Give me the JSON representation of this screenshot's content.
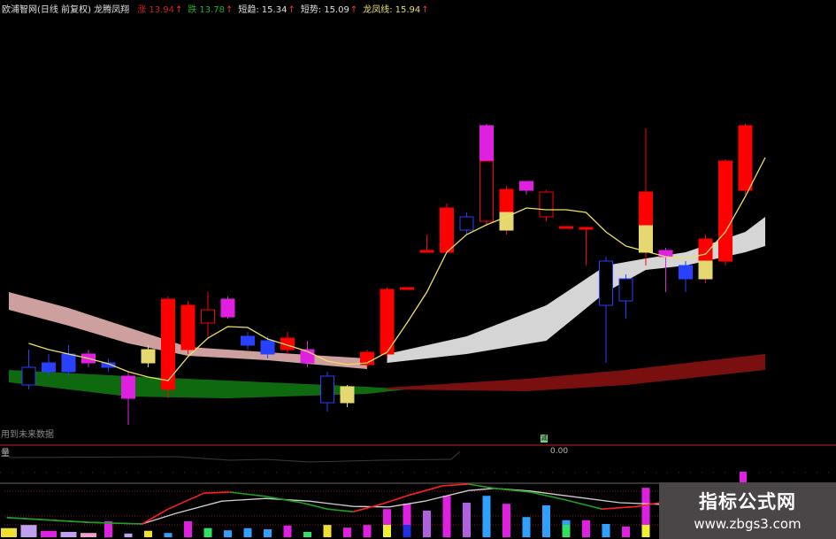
{
  "header": {
    "title": "欧浦智网(日线 前复权) 龙腾凤翔",
    "items": [
      {
        "label": "涨",
        "value": "13.94",
        "arrow": "↑",
        "color": "red"
      },
      {
        "label": "跌",
        "value": "13.78",
        "arrow": "↑",
        "color": "green"
      },
      {
        "label": "短趋:",
        "value": "15.34",
        "arrow": "↑",
        "color": "white"
      },
      {
        "label": "短势:",
        "value": "15.09",
        "arrow": "↑",
        "color": "white"
      },
      {
        "label": "龙凤线:",
        "value": "15.94",
        "arrow": "↑",
        "color": "yellow"
      }
    ]
  },
  "future_label": "用到未来数据",
  "volume": {
    "label": "量",
    "value": "0.00",
    "mark": "减"
  },
  "watermark": {
    "title": "指标公式网",
    "url": "www.zbgs3.com"
  },
  "colors": {
    "up": "#ff0000",
    "down": "#2840ff",
    "magenta": "#e020e0",
    "yellow": "#e6d870",
    "trend_line": "#f0e060",
    "pink_band": "#d8a8a8",
    "green_band": "#107010",
    "white_band": "#e0e0e0",
    "darkred_band": "#801010"
  },
  "chart_data": {
    "type": "candlestick",
    "candles": [
      {
        "o": 10.7,
        "c": 10.3,
        "h": 11.1,
        "l": 10.2,
        "t": "down",
        "hollow": true
      },
      {
        "o": 10.8,
        "c": 10.6,
        "h": 11.0,
        "l": 10.5,
        "t": "down"
      },
      {
        "o": 11.0,
        "c": 10.6,
        "h": 11.2,
        "l": 10.5,
        "t": "down"
      },
      {
        "o": 11.0,
        "c": 10.8,
        "h": 11.1,
        "l": 10.7,
        "t": "magenta"
      },
      {
        "o": 10.8,
        "c": 10.7,
        "h": 10.9,
        "l": 10.6,
        "t": "down"
      },
      {
        "o": 10.5,
        "c": 10.0,
        "h": 10.6,
        "l": 9.4,
        "t": "magenta"
      },
      {
        "o": 11.1,
        "c": 10.8,
        "h": 11.2,
        "l": 10.7,
        "t": "yellow"
      },
      {
        "o": 10.2,
        "c": 12.24,
        "h": 12.3,
        "l": 10.0,
        "t": "up"
      },
      {
        "o": 11.1,
        "c": 12.1,
        "h": 12.2,
        "l": 11.0,
        "t": "up"
      },
      {
        "o": 11.7,
        "c": 12.0,
        "h": 12.4,
        "l": 11.4,
        "t": "up",
        "hollow": true
      },
      {
        "o": 12.24,
        "c": 11.84,
        "h": 12.3,
        "l": 11.8,
        "t": "magenta"
      },
      {
        "o": 11.4,
        "c": 11.2,
        "h": 11.5,
        "l": 11.1,
        "t": "down"
      },
      {
        "o": 11.3,
        "c": 11.0,
        "h": 11.4,
        "l": 10.9,
        "t": "down"
      },
      {
        "o": 11.1,
        "c": 11.36,
        "h": 11.5,
        "l": 11.0,
        "t": "up"
      },
      {
        "o": 11.1,
        "c": 10.8,
        "h": 11.3,
        "l": 10.7,
        "t": "magenta"
      },
      {
        "o": 10.5,
        "c": 9.9,
        "h": 10.6,
        "l": 9.7,
        "t": "down",
        "hollow": true
      },
      {
        "o": 10.26,
        "c": 9.9,
        "h": 10.3,
        "l": 9.8,
        "t": "yellow"
      },
      {
        "o": 10.76,
        "c": 11.04,
        "h": 11.1,
        "l": 10.7,
        "t": "up"
      },
      {
        "o": 11.0,
        "c": 12.46,
        "h": 12.5,
        "l": 10.9,
        "t": "up"
      },
      {
        "o": 12.5,
        "c": 12.46,
        "h": 12.5,
        "l": 12.46,
        "t": "up"
      },
      {
        "o": 13.34,
        "c": 13.3,
        "h": 13.7,
        "l": 13.3,
        "t": "up"
      },
      {
        "o": 13.3,
        "c": 14.3,
        "h": 14.4,
        "l": 13.3,
        "t": "up"
      },
      {
        "o": 14.1,
        "c": 13.8,
        "h": 14.2,
        "l": 13.7,
        "t": "down",
        "hollow": true
      },
      {
        "o": 14.0,
        "c": 16.16,
        "h": 16.2,
        "l": 13.9,
        "t": "magenta",
        "split": 15.36,
        "lower_t": "up",
        "lower_hollow": true
      },
      {
        "o": 13.8,
        "c": 14.72,
        "h": 14.8,
        "l": 13.7,
        "t": "up",
        "split": 14.2,
        "lower_t": "yellow"
      },
      {
        "o": 14.7,
        "c": 14.9,
        "h": 14.9,
        "l": 14.6,
        "t": "magenta"
      },
      {
        "o": 14.1,
        "c": 14.66,
        "h": 14.7,
        "l": 14.0,
        "t": "up",
        "hollow": true
      },
      {
        "o": 13.88,
        "c": 13.84,
        "h": 13.88,
        "l": 13.84,
        "t": "up"
      },
      {
        "o": 13.86,
        "c": 13.82,
        "h": 13.86,
        "l": 13.0,
        "t": "up"
      },
      {
        "o": 13.1,
        "c": 12.1,
        "h": 13.2,
        "l": 10.8,
        "t": "down",
        "hollow": true
      },
      {
        "o": 12.7,
        "c": 12.2,
        "h": 12.8,
        "l": 11.8,
        "t": "down",
        "hollow": true
      },
      {
        "o": 13.3,
        "c": 14.66,
        "h": 16.1,
        "l": 13.0,
        "t": "up",
        "split": 13.9,
        "lower_t": "yellow"
      },
      {
        "o": 13.34,
        "c": 13.2,
        "h": 13.4,
        "l": 12.4,
        "t": "magenta"
      },
      {
        "o": 13.0,
        "c": 12.7,
        "h": 13.1,
        "l": 12.4,
        "t": "down"
      },
      {
        "o": 12.7,
        "c": 13.6,
        "h": 13.7,
        "l": 12.6,
        "t": "up",
        "split": 13.1,
        "lower_t": "yellow"
      },
      {
        "o": 13.1,
        "c": 15.36,
        "h": 15.4,
        "l": 13.0,
        "t": "up"
      },
      {
        "o": 14.7,
        "c": 16.16,
        "h": 16.2,
        "l": 14.6,
        "t": "up"
      }
    ],
    "trend_line": [
      11.24,
      11.1,
      11.0,
      10.9,
      10.78,
      10.6,
      10.48,
      10.4,
      10.94,
      11.36,
      11.62,
      11.6,
      11.34,
      11.2,
      11.06,
      10.84,
      10.76,
      10.8,
      11.04,
      11.7,
      12.4,
      13.3,
      13.7,
      13.92,
      14.1,
      14.3,
      14.26,
      14.26,
      14.2,
      13.76,
      13.44,
      13.32,
      13.2,
      13.16,
      13.26,
      13.76,
      14.56,
      15.44
    ],
    "bands": [
      {
        "key": "pink_band",
        "points": [
          [
            -1,
            12.4,
            12.0
          ],
          [
            2,
            12.04,
            11.64
          ],
          [
            5,
            11.6,
            11.24
          ],
          [
            8,
            11.16,
            10.96
          ],
          [
            12,
            11.04,
            10.86
          ],
          [
            17,
            10.9,
            10.66
          ]
        ]
      },
      {
        "key": "green_band",
        "points": [
          [
            -1,
            10.64,
            10.36
          ],
          [
            5,
            10.5,
            10.04
          ],
          [
            10,
            10.4,
            10.0
          ],
          [
            17,
            10.26,
            10.1
          ],
          [
            19,
            10.2,
            10.2
          ]
        ]
      },
      {
        "key": "white_band",
        "points": [
          [
            18,
            11.0,
            10.8
          ],
          [
            22,
            11.4,
            11.0
          ],
          [
            26,
            12.1,
            11.3
          ],
          [
            29,
            13.0,
            12.4
          ],
          [
            31,
            13.16,
            12.9
          ],
          [
            33,
            13.3,
            13.0
          ],
          [
            36,
            13.76,
            13.3
          ],
          [
            37,
            14.1,
            13.44
          ]
        ]
      },
      {
        "key": "darkred_band",
        "points": [
          [
            18,
            10.24,
            10.2
          ],
          [
            25,
            10.44,
            10.16
          ],
          [
            30,
            10.64,
            10.3
          ],
          [
            37,
            11.0,
            10.64
          ]
        ]
      }
    ],
    "indicator": {
      "white_line": [
        [
          -1.1,
          37
        ],
        [
          3,
          28
        ],
        [
          5.7,
          25
        ],
        [
          7.4,
          45
        ],
        [
          9.7,
          68
        ],
        [
          11.9,
          73
        ],
        [
          14.1,
          68
        ],
        [
          16.3,
          58
        ],
        [
          18.1,
          57
        ],
        [
          19.9,
          68
        ],
        [
          22.1,
          88
        ],
        [
          23.4,
          92
        ],
        [
          25.2,
          87
        ],
        [
          27,
          78
        ],
        [
          29.7,
          65
        ],
        [
          31.7,
          62
        ]
      ],
      "signal_line": [
        [
          -1.1,
          37
        ],
        [
          3,
          28
        ],
        [
          5.7,
          25
        ],
        [
          7,
          53
        ],
        [
          8.8,
          83
        ],
        [
          10.1,
          85
        ],
        [
          11.9,
          77
        ],
        [
          13.7,
          65
        ],
        [
          15,
          53
        ],
        [
          16.3,
          48
        ],
        [
          17.7,
          62
        ],
        [
          19,
          78
        ],
        [
          20.8,
          97
        ],
        [
          22.1,
          100
        ],
        [
          23.4,
          92
        ],
        [
          25.2,
          85
        ],
        [
          27,
          70
        ],
        [
          28.8,
          53
        ],
        [
          30.6,
          58
        ],
        [
          31.7,
          65
        ]
      ],
      "bars": [
        [
          -1,
          17,
          "#30a0ff",
          "#f0e030"
        ],
        [
          0,
          23,
          "#c0a0f0",
          null
        ],
        [
          1,
          12,
          "#e020e0",
          null
        ],
        [
          2,
          10,
          "#c0a0f0",
          null
        ],
        [
          3,
          8,
          "#f0a0d0",
          null
        ],
        [
          4,
          30,
          "#e020e0",
          null
        ],
        [
          5,
          7,
          "#c0a0f0",
          null
        ],
        [
          6,
          12,
          "#c0a0f0",
          "#f0e030"
        ],
        [
          7,
          8,
          "#30a0ff",
          null
        ],
        [
          8,
          30,
          "#e020e0",
          null
        ],
        [
          9,
          17,
          "#30a0ff",
          "#30e060"
        ],
        [
          10,
          13,
          "#30a0ff",
          null
        ],
        [
          11,
          17,
          "#30a0ff",
          null
        ],
        [
          12,
          15,
          "#30a0ff",
          null
        ],
        [
          13,
          22,
          "#e020e0",
          null
        ],
        [
          14,
          10,
          "#30e060",
          null
        ],
        [
          15,
          23,
          "#30a0ff",
          "#f0e030"
        ],
        [
          16,
          18,
          "#e020e0",
          null
        ],
        [
          17,
          23,
          "#e020e0",
          null
        ],
        [
          18,
          53,
          "#e020e0",
          "#f0f030"
        ],
        [
          19,
          63,
          "#e020e0",
          "#2030e0"
        ],
        [
          20,
          50,
          "#b060e0",
          null
        ],
        [
          21,
          78,
          "#e020e0",
          null
        ],
        [
          22,
          65,
          "#b060e0",
          null
        ],
        [
          23,
          78,
          "#30a0ff",
          null
        ],
        [
          24,
          63,
          "#e020e0",
          null
        ],
        [
          25,
          38,
          "#30a0ff",
          null
        ],
        [
          26,
          60,
          "#30a0ff",
          null
        ],
        [
          27,
          32,
          "#30a0ff",
          "#30e060"
        ],
        [
          28,
          32,
          "#e020e0",
          null
        ],
        [
          29,
          25,
          "#30a0ff",
          null
        ],
        [
          30,
          20,
          "#e020e0",
          null
        ],
        [
          31,
          93,
          "#e020e0",
          "#f0f030"
        ]
      ]
    }
  }
}
